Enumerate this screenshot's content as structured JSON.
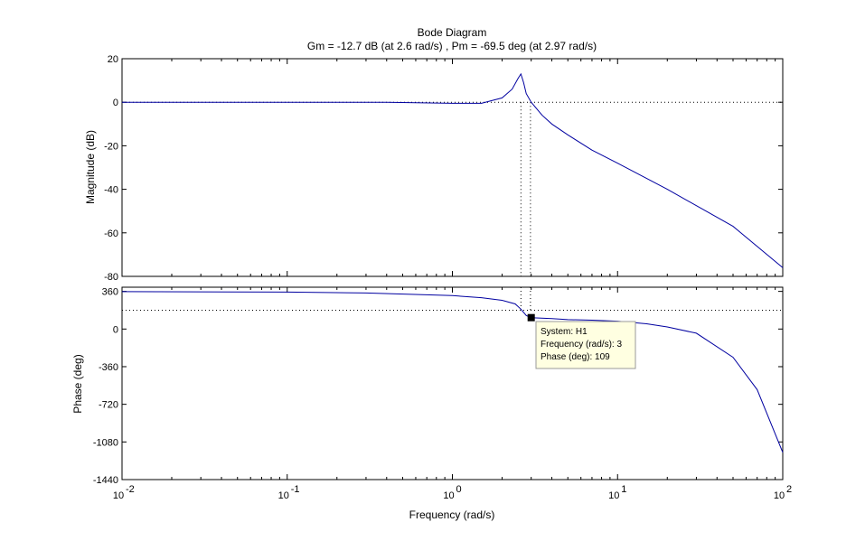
{
  "chart_data": [
    {
      "type": "line",
      "panel": "magnitude",
      "title": "Bode Diagram",
      "subtitle": "Gm = -12.7 dB (at 2.6 rad/s) ,  Pm = -69.5 deg (at 2.97 rad/s)",
      "ylabel": "Magnitude (dB)",
      "xscale": "log",
      "xlim": [
        0.01,
        100
      ],
      "ylim": [
        -80,
        20
      ],
      "yticks": [
        20,
        0,
        -20,
        -40,
        -60,
        -80
      ],
      "ytick_labels": [
        "20",
        "0",
        "-20",
        "-40",
        "-60",
        "-80"
      ],
      "series": [
        {
          "name": "H1",
          "color": "#0000a0",
          "x": [
            0.01,
            0.1,
            0.4,
            1,
            1.5,
            2,
            2.3,
            2.5,
            2.6,
            2.7,
            2.8,
            3,
            3.5,
            4,
            5,
            7,
            10,
            20,
            50,
            100
          ],
          "y": [
            0,
            0,
            0,
            -0.5,
            -0.5,
            2,
            6,
            11,
            13,
            9,
            4,
            0,
            -6,
            -10,
            -15,
            -22,
            -28,
            -40,
            -57,
            -76
          ]
        }
      ],
      "reference_line": {
        "y": 0,
        "style": "dotted"
      },
      "margin_markers": [
        {
          "x": 2.6,
          "style": "dotted"
        },
        {
          "x": 2.97,
          "style": "dotted"
        }
      ]
    },
    {
      "type": "line",
      "panel": "phase",
      "ylabel": "Phase (deg)",
      "xlabel": "Frequency  (rad/s)",
      "xscale": "log",
      "xlim": [
        0.01,
        100
      ],
      "ylim": [
        -1440,
        400
      ],
      "yticks": [
        360,
        0,
        -360,
        -720,
        -1080,
        -1440
      ],
      "ytick_labels": [
        "360",
        "0",
        "-360",
        "-720",
        "-1080",
        "-1440"
      ],
      "xticks": [
        0.01,
        0.1,
        1,
        10,
        100
      ],
      "xtick_base": "10",
      "xtick_exponents": [
        "-2",
        "-1",
        "0",
        "1",
        "2"
      ],
      "series": [
        {
          "name": "H1",
          "color": "#0000a0",
          "x": [
            0.01,
            0.1,
            0.3,
            1,
            1.5,
            2,
            2.4,
            2.6,
            2.8,
            3,
            4,
            5,
            7,
            10,
            15,
            20,
            30,
            50,
            70,
            100
          ],
          "y": [
            358,
            353,
            345,
            320,
            300,
            275,
            240,
            190,
            130,
            109,
            100,
            90,
            85,
            75,
            50,
            20,
            -40,
            -270,
            -580,
            -1180
          ]
        }
      ],
      "reference_line": {
        "y": 180,
        "style": "dotted"
      },
      "data_marker": {
        "x": 3,
        "y": 109
      }
    }
  ],
  "datatip": {
    "system": "System: H1",
    "frequency": "Frequency (rad/s): 3",
    "phase": "Phase (deg): 109"
  }
}
